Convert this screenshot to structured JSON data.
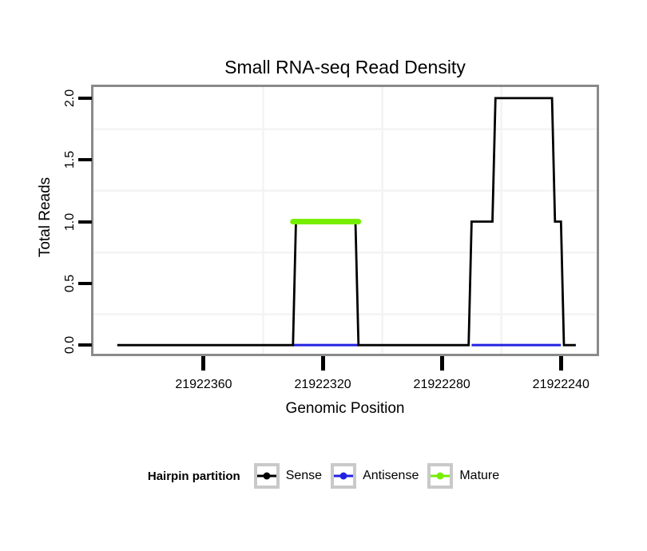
{
  "title": "Small RNA-seq Read Density",
  "chart_data": {
    "type": "line",
    "subtype": "step-coverage",
    "title": "Small RNA-seq Read Density",
    "xlabel": "Genomic Position",
    "ylabel": "Total Reads",
    "axes": {
      "x": {
        "reversed": true,
        "xlim": [
          21922397,
          21922228
        ],
        "tick_values": [
          21922360,
          21922320,
          21922280,
          21922240
        ],
        "tick_labels": [
          "21922360",
          "21922320",
          "21922280",
          "21922240"
        ],
        "minor_gridlines": [
          21922340,
          21922300,
          21922260
        ]
      },
      "y": {
        "ylim": [
          -0.07,
          2.09
        ],
        "tick_values": [
          0,
          0.5,
          1,
          1.5,
          2
        ],
        "tick_labels": [
          "0.0",
          "0.5",
          "1.0",
          "1.5",
          "2.0"
        ],
        "minor_gridlines": [
          0.25,
          0.75,
          1.25,
          1.75
        ]
      }
    },
    "grid": {
      "color": "#f3f3f3",
      "major": false,
      "minor": true
    },
    "series": [
      {
        "name": "Sense",
        "color": "#000000",
        "style": "step-line",
        "line_width": 2.8,
        "points": [
          [
            21922389,
            0
          ],
          [
            21922330,
            0
          ],
          [
            21922329,
            1
          ],
          [
            21922309,
            1
          ],
          [
            21922308,
            0
          ],
          [
            21922271,
            0
          ],
          [
            21922270,
            1
          ],
          [
            21922263,
            1
          ],
          [
            21922262,
            2
          ],
          [
            21922243,
            2
          ],
          [
            21922242,
            1
          ],
          [
            21922240,
            1
          ],
          [
            21922239,
            0
          ],
          [
            21922235,
            0
          ]
        ]
      },
      {
        "name": "Antisense",
        "color": "#2222e0",
        "style": "segments",
        "line_width": 3,
        "segments": [
          [
            [
              21922330,
              0
            ],
            [
              21922308,
              0
            ]
          ],
          [
            [
              21922270,
              0
            ],
            [
              21922240,
              0
            ]
          ]
        ]
      },
      {
        "name": "Mature",
        "color": "#76ee00",
        "style": "segments",
        "line_width": 7,
        "line_cap": "round",
        "segments": [
          [
            [
              21922330,
              1
            ],
            [
              21922308,
              1
            ]
          ]
        ]
      }
    ],
    "legend_position": "bottom"
  },
  "legend": {
    "title": "Hairpin partition",
    "items": [
      {
        "label": "Sense",
        "color": "#000000"
      },
      {
        "label": "Antisense",
        "color": "#2222e0"
      },
      {
        "label": "Mature",
        "color": "#76ee00"
      }
    ]
  },
  "colors": {
    "panel_border": "#8a8a8a",
    "gridline": "#f3f3f3",
    "tick": "#000000",
    "legend_key_border": "#c9c9c9",
    "background": "#ffffff"
  }
}
